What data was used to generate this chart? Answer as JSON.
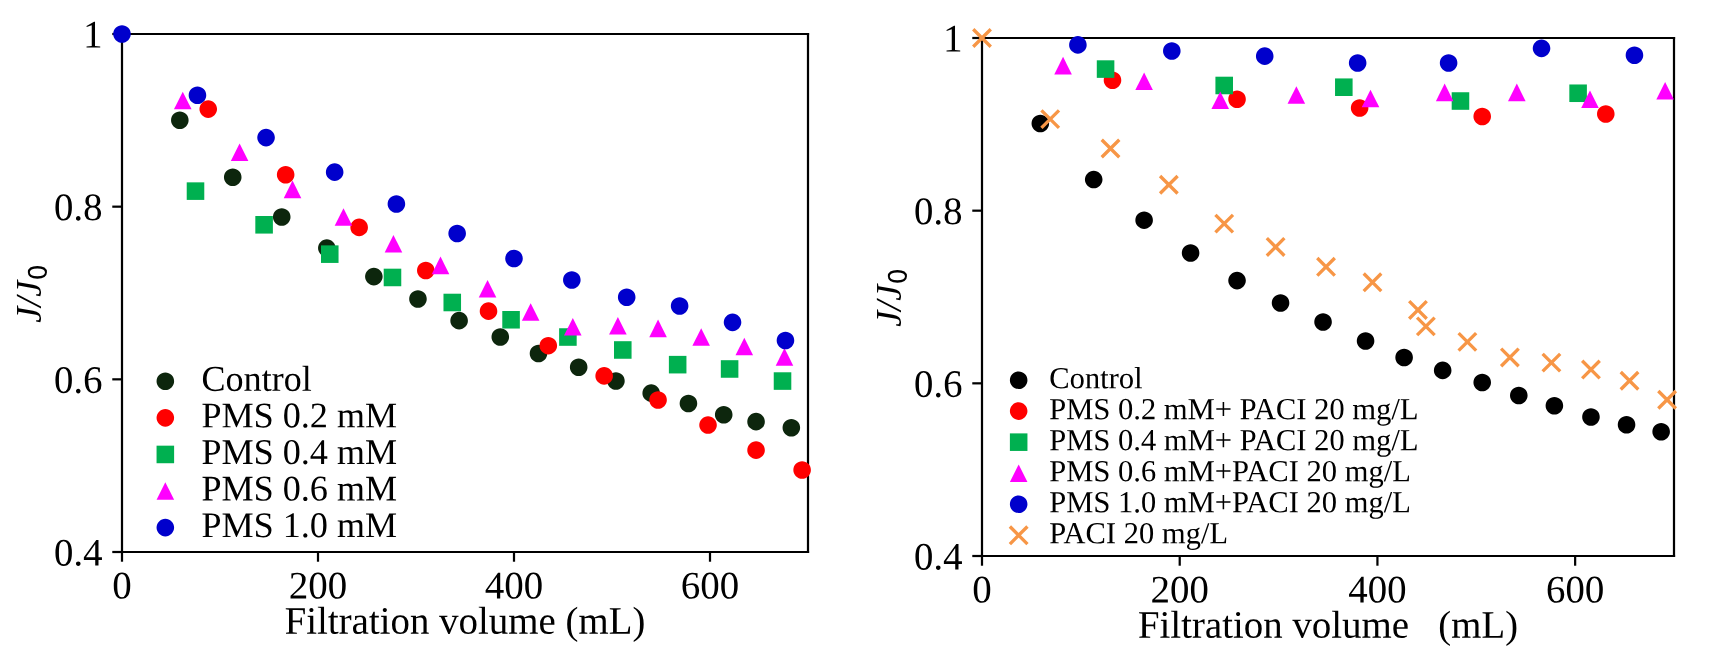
{
  "chart_data": [
    {
      "type": "scatter",
      "xlabel": "Filtration volume (mL)",
      "ylabel": "J/J$_{0}$",
      "xlim": [
        0,
        700
      ],
      "xticks": [
        0,
        200,
        400,
        600
      ],
      "ylim": [
        0.4,
        1
      ],
      "yticks": [
        0.4,
        0.6,
        0.8,
        {
          "value": 1,
          "label": "1"
        }
      ],
      "grid": false,
      "legend": "bottom left",
      "series": [
        {
          "name": "Control",
          "color": "#0d260d",
          "marker": "circle",
          "x": [
            59,
            113,
            163,
            209,
            257,
            302,
            344,
            386,
            425,
            466,
            504,
            540,
            578,
            614,
            647,
            683
          ],
          "values": [
            0.9,
            0.834,
            0.788,
            0.752,
            0.719,
            0.693,
            0.668,
            0.649,
            0.63,
            0.614,
            0.598,
            0.584,
            0.572,
            0.559,
            0.551,
            0.544
          ]
        },
        {
          "name": "PMS 0.2 mM",
          "color": "#ff0000",
          "marker": "circle",
          "x": [
            88,
            167,
            242,
            310,
            374,
            435,
            492,
            547,
            598,
            647,
            694
          ],
          "values": [
            0.913,
            0.837,
            0.776,
            0.726,
            0.679,
            0.639,
            0.604,
            0.576,
            0.547,
            0.518,
            0.495
          ]
        },
        {
          "name": "PMS 0.4 mM",
          "color": "#00b050",
          "marker": "square",
          "x": [
            75,
            145,
            212,
            276,
            337,
            397,
            455,
            511,
            567,
            620,
            674
          ],
          "values": [
            0.818,
            0.779,
            0.745,
            0.718,
            0.689,
            0.669,
            0.649,
            0.634,
            0.617,
            0.612,
            0.598
          ]
        },
        {
          "name": "PMS 0.6 mM",
          "color": "#ff00ff",
          "marker": "triangle",
          "x": [
            62,
            120,
            174,
            226,
            277,
            325,
            373,
            417,
            460,
            506,
            547,
            591,
            635,
            676
          ],
          "values": [
            0.923,
            0.863,
            0.82,
            0.788,
            0.757,
            0.732,
            0.705,
            0.678,
            0.661,
            0.662,
            0.659,
            0.649,
            0.638,
            0.626
          ]
        },
        {
          "name": "PMS 1.0 mM",
          "color": "#0000cc",
          "marker": "circle",
          "x": [
            0,
            77,
            147,
            217,
            280,
            342,
            400,
            459,
            515,
            569,
            623,
            677
          ],
          "values": [
            1,
            0.929,
            0.88,
            0.84,
            0.803,
            0.769,
            0.74,
            0.715,
            0.695,
            0.685,
            0.666,
            0.645
          ]
        }
      ]
    },
    {
      "type": "scatter",
      "xlabel": "Filtration volume   (mL)",
      "ylabel": "J/J$_{0}$",
      "xlim": [
        0,
        700
      ],
      "xticks": [
        0,
        200,
        400,
        600
      ],
      "ylim": [
        0.4,
        1
      ],
      "yticks": [
        0.4,
        0.6,
        0.8,
        {
          "value": 1,
          "label": "1"
        }
      ],
      "grid": false,
      "legend": "bottom left",
      "series": [
        {
          "name": "Control",
          "color": "#000000",
          "marker": "circle",
          "x": [
            59,
            113,
            164,
            211,
            258,
            302,
            345,
            388,
            427,
            466,
            506,
            543,
            579,
            616,
            652,
            687
          ],
          "values": [
            0.901,
            0.836,
            0.789,
            0.751,
            0.719,
            0.693,
            0.671,
            0.649,
            0.63,
            0.615,
            0.601,
            0.586,
            0.574,
            0.561,
            0.552,
            0.544
          ]
        },
        {
          "name": "PMS 0.2 mM+ PACI 20 mg/L",
          "color": "#ff0000",
          "marker": "circle",
          "x": [
            132,
            258,
            382,
            506,
            631
          ],
          "values": [
            0.951,
            0.929,
            0.919,
            0.909,
            0.912
          ]
        },
        {
          "name": "PMS 0.4 mM+ PACI 20 mg/L",
          "color": "#00b050",
          "marker": "square",
          "x": [
            125,
            245,
            366,
            484,
            603
          ],
          "values": [
            0.964,
            0.945,
            0.943,
            0.927,
            0.936
          ]
        },
        {
          "name": "PMS 0.6 mM+PACI 20 mg/L",
          "color": "#ff00ff",
          "marker": "triangle",
          "x": [
            82,
            164,
            241,
            318,
            393,
            468,
            541,
            615,
            691
          ],
          "values": [
            0.968,
            0.95,
            0.928,
            0.934,
            0.93,
            0.937,
            0.937,
            0.929,
            0.939
          ]
        },
        {
          "name": "PMS 1.0 mM+PACI 20 mg/L",
          "color": "#0000cc",
          "marker": "circle",
          "x": [
            97,
            192,
            286,
            380,
            472,
            566,
            660
          ],
          "values": [
            0.992,
            0.985,
            0.979,
            0.971,
            0.971,
            0.988,
            0.98
          ]
        },
        {
          "name": "PACI 20 mg/L",
          "color": "#f79646",
          "marker": "cross",
          "x": [
            0,
            69,
            130,
            189,
            245,
            297,
            348,
            395,
            441,
            449,
            491,
            534,
            576,
            616,
            655,
            693
          ],
          "values": [
            1,
            0.906,
            0.872,
            0.83,
            0.785,
            0.758,
            0.735,
            0.717,
            0.685,
            0.666,
            0.648,
            0.63,
            0.624,
            0.616,
            0.603,
            0.581
          ]
        }
      ]
    }
  ]
}
